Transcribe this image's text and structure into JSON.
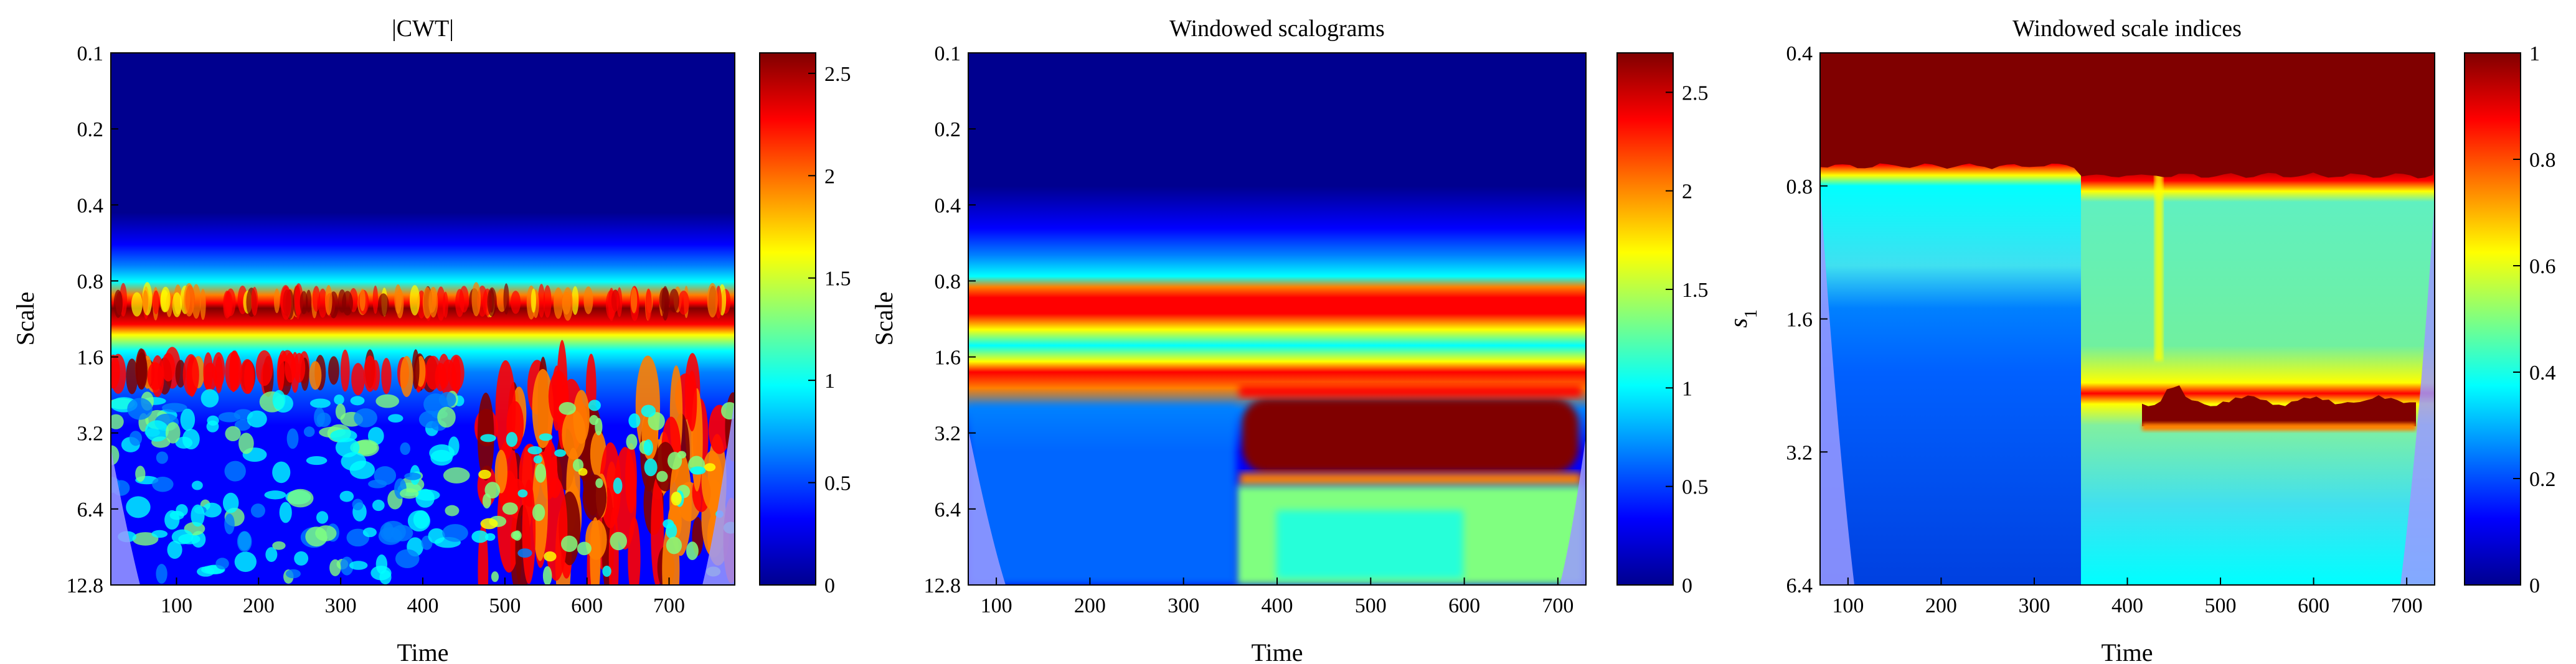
{
  "colormap": [
    "#00008f",
    "#0000ff",
    "#0080ff",
    "#00ffff",
    "#80ff80",
    "#ffff00",
    "#ff8000",
    "#ff0000",
    "#800000"
  ],
  "chart_data": [
    {
      "type": "heatmap",
      "title": "|CWT|",
      "xlabel": "Time",
      "ylabel": "Scale",
      "xlim": [
        20,
        780
      ],
      "xticks": [
        100,
        200,
        300,
        400,
        500,
        600,
        700
      ],
      "yscale": "log",
      "ylim": [
        0.1,
        12.8
      ],
      "yticks": [
        "0.1",
        "0.2",
        "0.4",
        "0.8",
        "1.6",
        "3.2",
        "6.4",
        "12.8"
      ],
      "colorbar": {
        "min": 0,
        "max": 2.6,
        "ticks": [
          "0",
          "0.5",
          "1",
          "1.5",
          "2",
          "2.5"
        ]
      },
      "cone_of_influence": true,
      "features": [
        {
          "description": "persistent band",
          "scale": 0.9,
          "level": 2.5
        },
        {
          "description": "secondary band",
          "scale": 1.9,
          "time_range": [
            20,
            390
          ],
          "level": 2.4
        },
        {
          "description": "high-energy burst region",
          "scale_range": [
            2.5,
            12.8
          ],
          "time_range": [
            385,
            640
          ],
          "level": 2.6
        }
      ]
    },
    {
      "type": "heatmap",
      "title": "Windowed scalograms",
      "xlabel": "Time",
      "ylabel": "Scale",
      "xlim": [
        70,
        730
      ],
      "xticks": [
        100,
        200,
        300,
        400,
        500,
        600,
        700
      ],
      "yscale": "log",
      "ylim": [
        0.1,
        12.8
      ],
      "yticks": [
        "0.1",
        "0.2",
        "0.4",
        "0.8",
        "1.6",
        "3.2",
        "6.4",
        "12.8"
      ],
      "colorbar": {
        "min": 0,
        "max": 2.7,
        "ticks": [
          "0",
          "0.5",
          "1",
          "1.5",
          "2",
          "2.5"
        ]
      },
      "cone_of_influence": true,
      "features": [
        {
          "description": "persistent band",
          "scale": 0.9,
          "level": 2.5
        },
        {
          "description": "secondary band",
          "scale": 1.9,
          "level": 2.3
        },
        {
          "description": "saturated block",
          "scale_range": [
            2.5,
            4.5
          ],
          "time_range": [
            370,
            710
          ],
          "level": 2.7
        }
      ]
    },
    {
      "type": "heatmap",
      "title": "Windowed scale indices",
      "xlabel": "Time",
      "ylabel": "s1",
      "ylabel_main": "s",
      "ylabel_sub": "1",
      "xlim": [
        70,
        730
      ],
      "xticks": [
        100,
        200,
        300,
        400,
        500,
        600,
        700
      ],
      "yscale": "log",
      "ylim": [
        0.4,
        6.4
      ],
      "yticks": [
        "0.4",
        "0.8",
        "1.6",
        "3.2",
        "6.4"
      ],
      "colorbar": {
        "min": 0,
        "max": 1,
        "ticks": [
          "0",
          "0.2",
          "0.4",
          "0.6",
          "0.8",
          "1"
        ]
      },
      "cone_of_influence": true,
      "features": [
        {
          "description": "saturated top region",
          "scale_range": [
            0.4,
            0.78
          ],
          "level": 1.0
        },
        {
          "description": "step change",
          "time": 360
        },
        {
          "description": "saturated band after step",
          "scale": 2.7,
          "time_range": [
            420,
            700
          ],
          "level": 1.0
        }
      ]
    }
  ]
}
